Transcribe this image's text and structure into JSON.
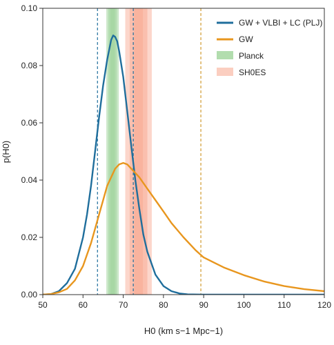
{
  "chart_data": {
    "type": "line",
    "xlabel": "H0 (km s−1 Mpc−1)",
    "ylabel": "p(H0)",
    "xlim": [
      50,
      120
    ],
    "ylim": [
      0,
      0.1
    ],
    "xticks": [
      50,
      60,
      70,
      80,
      90,
      100,
      110,
      120
    ],
    "yticks": [
      0.0,
      0.02,
      0.04,
      0.06,
      0.08,
      0.1
    ],
    "xtick_labels": [
      "50",
      "60",
      "70",
      "80",
      "90",
      "100",
      "110",
      "120"
    ],
    "ytick_labels": [
      "0.00",
      "0.02",
      "0.04",
      "0.06",
      "0.08",
      "0.10"
    ],
    "grid": false,
    "legend_position": "top-right",
    "series": [
      {
        "name": "GW + VLBI + LC (PLJ)",
        "color": "#1f6e9c",
        "x": [
          50,
          52,
          54,
          56,
          58,
          60,
          61,
          62,
          63,
          64,
          65,
          66,
          67,
          67.5,
          68,
          68.5,
          69,
          70,
          71,
          72,
          73,
          74,
          75,
          76,
          78,
          80,
          82,
          84,
          86,
          90,
          100,
          120
        ],
        "y": [
          0.0,
          0.0002,
          0.0012,
          0.004,
          0.009,
          0.02,
          0.028,
          0.038,
          0.05,
          0.062,
          0.073,
          0.082,
          0.089,
          0.0905,
          0.09,
          0.0885,
          0.085,
          0.076,
          0.064,
          0.052,
          0.04,
          0.03,
          0.021,
          0.015,
          0.007,
          0.003,
          0.0012,
          0.0004,
          0.0001,
          0.0,
          0.0,
          0.0
        ]
      },
      {
        "name": "GW",
        "color": "#e8961e",
        "x": [
          50,
          52,
          54,
          56,
          58,
          60,
          62,
          64,
          66,
          68,
          69,
          70,
          71,
          72,
          74,
          76,
          78,
          80,
          82,
          85,
          88,
          90,
          95,
          100,
          105,
          110,
          115,
          120
        ],
        "y": [
          0.0,
          0.0002,
          0.0008,
          0.002,
          0.005,
          0.01,
          0.018,
          0.028,
          0.038,
          0.044,
          0.0455,
          0.046,
          0.0455,
          0.044,
          0.041,
          0.037,
          0.033,
          0.029,
          0.025,
          0.02,
          0.0155,
          0.013,
          0.0095,
          0.0068,
          0.0046,
          0.003,
          0.0019,
          0.0012
        ]
      }
    ],
    "bands": [
      {
        "name": "Planck",
        "color": "#9fd49a",
        "opacity": 0.55,
        "ranges": [
          [
            66.8,
            67.9
          ],
          [
            66.3,
            68.4
          ],
          [
            65.8,
            68.9
          ]
        ]
      },
      {
        "name": "SH0ES",
        "color": "#f8a58c",
        "opacity": 0.45,
        "ranges": [
          [
            72.7,
            74.9
          ],
          [
            71.6,
            76.0
          ],
          [
            70.5,
            77.1
          ]
        ]
      }
    ],
    "vlines": [
      {
        "x": 63.6,
        "color": "#1f6e9c"
      },
      {
        "x": 72.5,
        "color": "#1f6e9c"
      },
      {
        "x": 89.3,
        "color": "#d09a2e"
      }
    ]
  }
}
